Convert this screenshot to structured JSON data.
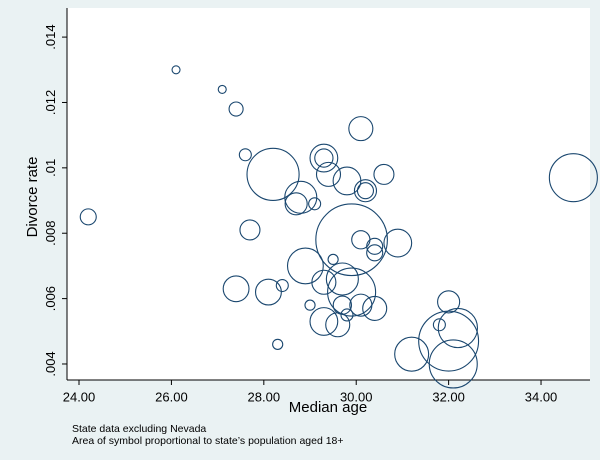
{
  "chart_data": {
    "type": "scatter",
    "x_label": "Median age",
    "y_label": "Divorce rate",
    "notes": [
      "State data excluding Nevada",
      "Area of symbol proportional to state’s population aged 18+"
    ],
    "color": "#1a476f",
    "x": [
      24.2,
      26.1,
      27.1,
      27.4,
      27.6,
      27.7,
      27.4,
      28.1,
      28.4,
      28.3,
      28.2,
      28.8,
      28.7,
      29.1,
      29.3,
      29.3,
      29.4,
      30.1,
      29.8,
      30.2,
      30.2,
      30.6,
      29.9,
      30.1,
      30.4,
      30.9,
      30.4,
      28.9,
      29.5,
      29.3,
      29.7,
      29.9,
      29.7,
      29.8,
      30.1,
      30.4,
      29.0,
      29.3,
      29.6,
      31.2,
      31.8,
      32.0,
      32.0,
      32.2,
      32.1,
      34.7
    ],
    "values": [
      0.0085,
      0.013,
      0.0124,
      0.0118,
      0.0104,
      0.0081,
      0.0063,
      0.0062,
      0.0064,
      0.0046,
      0.0098,
      0.0091,
      0.0089,
      0.0089,
      0.0103,
      0.0103,
      0.0098,
      0.0112,
      0.0096,
      0.0093,
      0.0093,
      0.0098,
      0.0078,
      0.0078,
      0.0076,
      0.0077,
      0.0074,
      0.007,
      0.0072,
      0.0065,
      0.0066,
      0.0062,
      0.0058,
      0.0055,
      0.0058,
      0.0057,
      0.0058,
      0.0053,
      0.0052,
      0.0043,
      0.0052,
      0.0059,
      0.0047,
      0.0051,
      0.004,
      0.0097
    ],
    "sizes": [
      1.0,
      0.25,
      0.25,
      0.77,
      0.56,
      1.56,
      2.6,
      2.6,
      0.56,
      0.4,
      10.6,
      4,
      1.9,
      0.56,
      3,
      1.3,
      2.25,
      2.25,
      3,
      1.9,
      1,
      1.56,
      20,
      1.3,
      1,
      3,
      1,
      5,
      0.4,
      2.25,
      4,
      9,
      1.3,
      0.56,
      1.9,
      2.25,
      0.4,
      3,
      2.25,
      4.5,
      0.56,
      1.9,
      14,
      6,
      9,
      9
    ],
    "xlim": [
      23.74,
      35.06
    ],
    "ylim": [
      0.00351,
      0.01489
    ],
    "xticks": [
      {
        "value": 24,
        "label": "24.00"
      },
      {
        "value": 26,
        "label": "26.00"
      },
      {
        "value": 28,
        "label": "28.00"
      },
      {
        "value": 30,
        "label": "30.00"
      },
      {
        "value": 32,
        "label": "32.00"
      },
      {
        "value": 34,
        "label": "34.00"
      }
    ],
    "yticks": [
      {
        "value": 0.004,
        "label": ".004"
      },
      {
        "value": 0.006,
        "label": ".006"
      },
      {
        "value": 0.008,
        "label": ".008"
      },
      {
        "value": 0.01,
        "label": ".01"
      },
      {
        "value": 0.012,
        "label": ".012"
      },
      {
        "value": 0.014,
        "label": ".014"
      }
    ]
  }
}
